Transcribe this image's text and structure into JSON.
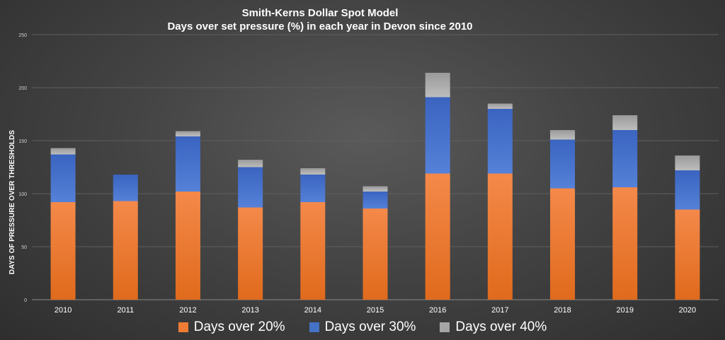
{
  "chart_data": {
    "type": "bar",
    "stacked": true,
    "title": "Smith-Kerns Dollar Spot Model",
    "subtitle": "Days over set pressure (%) in each year in Devon since 2010",
    "xlabel": "",
    "ylabel": "DAYS OF PRESSURE OVER THRESHOLDS",
    "ylim": [
      0,
      250
    ],
    "yticks": [
      0,
      50,
      100,
      150,
      200,
      250
    ],
    "grid": true,
    "legend_position": "bottom",
    "categories": [
      "2010",
      "2011",
      "2012",
      "2013",
      "2014",
      "2015",
      "2016",
      "2017",
      "2018",
      "2019",
      "2020"
    ],
    "series": [
      {
        "name": "Days over 20%",
        "color": "#ee7c35",
        "values": [
          92,
          93,
          102,
          87,
          92,
          86,
          119,
          119,
          105,
          106,
          85
        ]
      },
      {
        "name": "Days over 30%",
        "color": "#4472c4",
        "values": [
          45,
          25,
          52,
          38,
          26,
          16,
          72,
          61,
          46,
          54,
          37
        ]
      },
      {
        "name": "Days over 40%",
        "color": "#a6a6a6",
        "values": [
          6,
          0,
          5,
          7,
          6,
          5,
          23,
          5,
          9,
          14,
          14
        ]
      }
    ]
  }
}
